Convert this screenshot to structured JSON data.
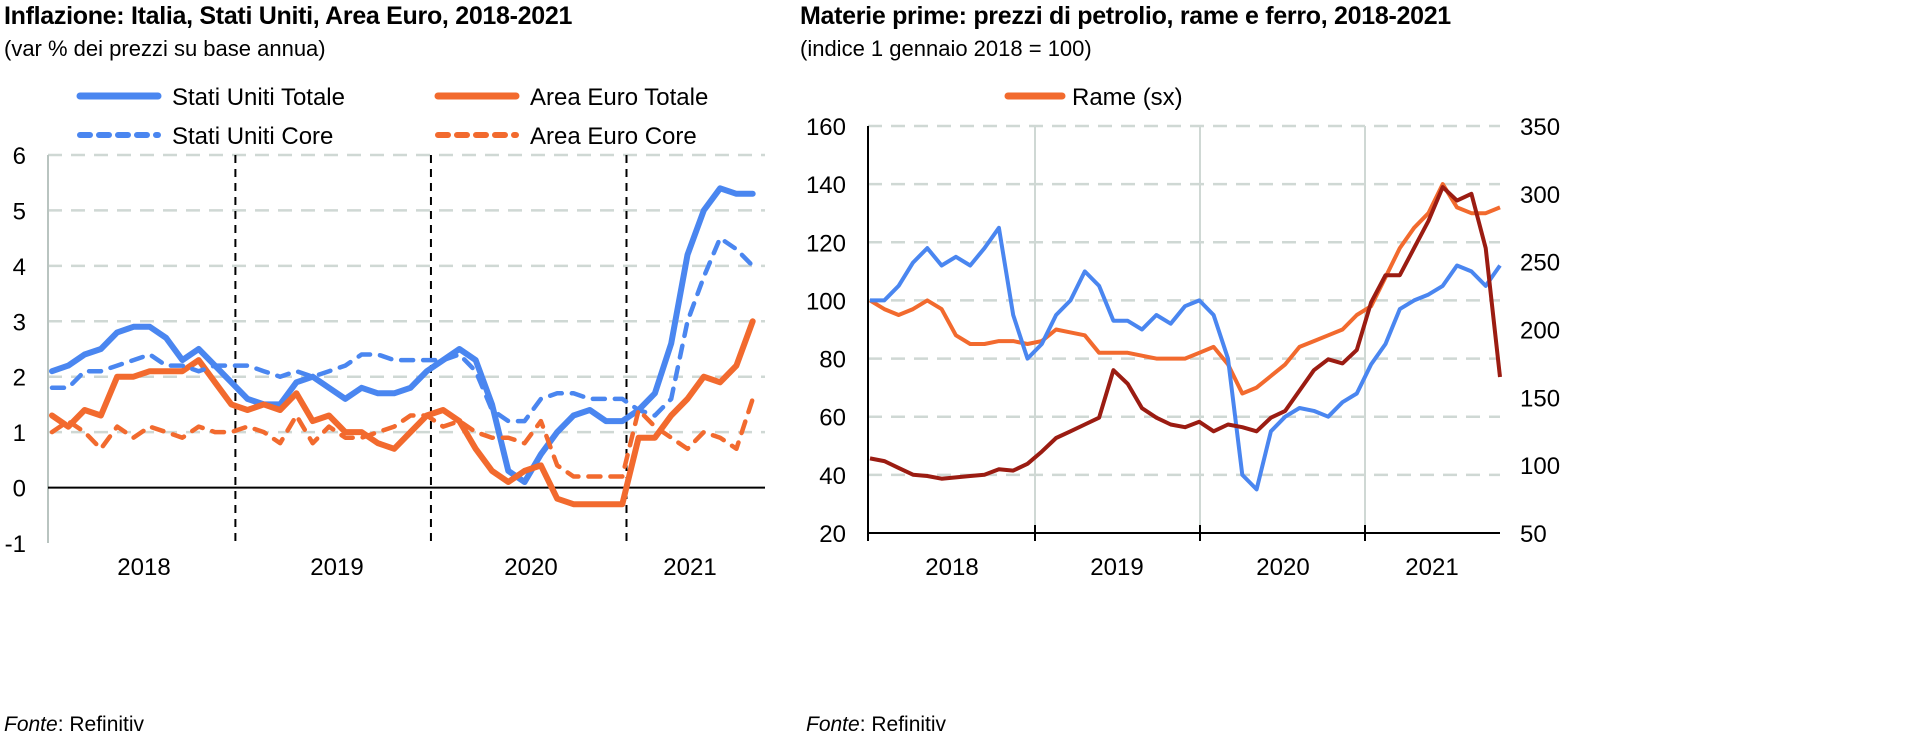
{
  "chart_data": [
    {
      "type": "line",
      "title": "Inflazione: Italia, Stati Uniti, Area Euro, 2018-2021",
      "subtitle": "(var % dei prezzi su base annua)",
      "source_label": "Fonte",
      "source": ": Refinitiv",
      "ylim": [
        -1,
        6
      ],
      "yticks": [
        6,
        5,
        4,
        3,
        2,
        1,
        0,
        -1
      ],
      "xlabels": [
        "2018",
        "2019",
        "2020",
        "2021"
      ],
      "frequency": "monthly, Jan 2018 - Aug 2021",
      "legend_position": "top",
      "series": [
        {
          "name": "Stati Uniti Totale",
          "color": "#4A86F0",
          "dash": false,
          "values": [
            2.1,
            2.2,
            2.4,
            2.5,
            2.8,
            2.9,
            2.9,
            2.7,
            2.3,
            2.5,
            2.2,
            1.9,
            1.6,
            1.5,
            1.5,
            1.9,
            2.0,
            1.8,
            1.6,
            1.8,
            1.7,
            1.7,
            1.8,
            2.1,
            2.3,
            2.5,
            2.3,
            1.5,
            0.3,
            0.1,
            0.6,
            1.0,
            1.3,
            1.4,
            1.2,
            1.2,
            1.4,
            1.7,
            2.6,
            4.2,
            5.0,
            5.4,
            5.3,
            5.3
          ]
        },
        {
          "name": "Area Euro Totale",
          "color": "#F26A2E",
          "dash": false,
          "values": [
            1.3,
            1.1,
            1.4,
            1.3,
            2.0,
            2.0,
            2.1,
            2.1,
            2.1,
            2.3,
            1.9,
            1.5,
            1.4,
            1.5,
            1.4,
            1.7,
            1.2,
            1.3,
            1.0,
            1.0,
            0.8,
            0.7,
            1.0,
            1.3,
            1.4,
            1.2,
            0.7,
            0.3,
            0.1,
            0.3,
            0.4,
            -0.2,
            -0.3,
            -0.3,
            -0.3,
            -0.3,
            0.9,
            0.9,
            1.3,
            1.6,
            2.0,
            1.9,
            2.2,
            3.0
          ]
        },
        {
          "name": "Stati Uniti Core",
          "color": "#4A86F0",
          "dash": true,
          "values": [
            1.8,
            1.8,
            2.1,
            2.1,
            2.2,
            2.3,
            2.4,
            2.2,
            2.2,
            2.1,
            2.2,
            2.2,
            2.2,
            2.1,
            2.0,
            2.1,
            2.0,
            2.1,
            2.2,
            2.4,
            2.4,
            2.3,
            2.3,
            2.3,
            2.3,
            2.4,
            2.1,
            1.4,
            1.2,
            1.2,
            1.6,
            1.7,
            1.7,
            1.6,
            1.6,
            1.6,
            1.4,
            1.3,
            1.6,
            3.0,
            3.8,
            4.5,
            4.3,
            4.0
          ]
        },
        {
          "name": "Area Euro Core",
          "color": "#F26A2E",
          "dash": true,
          "values": [
            1.0,
            1.2,
            1.0,
            0.7,
            1.1,
            0.9,
            1.1,
            1.0,
            0.9,
            1.1,
            1.0,
            1.0,
            1.1,
            1.0,
            0.8,
            1.3,
            0.8,
            1.1,
            0.9,
            0.9,
            1.0,
            1.1,
            1.3,
            1.3,
            1.1,
            1.2,
            1.0,
            0.9,
            0.9,
            0.8,
            1.2,
            0.4,
            0.2,
            0.2,
            0.2,
            0.2,
            1.4,
            1.1,
            0.9,
            0.7,
            1.0,
            0.9,
            0.7,
            1.6
          ]
        }
      ]
    },
    {
      "type": "line",
      "title": "Materie prime: prezzi di petrolio, rame e ferro, 2018-2021",
      "subtitle": "(indice 1 gennaio 2018 = 100)",
      "source_label": "Fonte",
      "source": ": Refinitiv",
      "ylim": [
        20,
        160
      ],
      "yticks": [
        160,
        140,
        120,
        100,
        80,
        60,
        40,
        20
      ],
      "y2lim": [
        50,
        350
      ],
      "y2ticks": [
        350,
        300,
        250,
        200,
        150,
        100,
        50
      ],
      "xlabels": [
        "2018",
        "2019",
        "2020",
        "2021"
      ],
      "frequency": "monthly approx., Jan 2018 - Sep 2021",
      "legend_position": "top",
      "series": [
        {
          "name": "Rame (sx)",
          "color": "#F26A2E",
          "axis": "left",
          "values": [
            100,
            97,
            95,
            97,
            100,
            97,
            88,
            85,
            85,
            86,
            86,
            85,
            86,
            90,
            89,
            88,
            82,
            82,
            82,
            81,
            80,
            80,
            80,
            82,
            84,
            78,
            68,
            70,
            74,
            78,
            84,
            86,
            88,
            90,
            95,
            98,
            108,
            118,
            125,
            130,
            140,
            132,
            130,
            130,
            132
          ]
        },
        {
          "name": "",
          "color": "#4A86F0",
          "axis": "left",
          "values": [
            100,
            100,
            105,
            113,
            118,
            112,
            115,
            112,
            118,
            125,
            95,
            80,
            85,
            95,
            100,
            110,
            105,
            93,
            93,
            90,
            95,
            92,
            98,
            100,
            95,
            80,
            40,
            35,
            55,
            60,
            63,
            62,
            60,
            65,
            68,
            78,
            85,
            97,
            100,
            102,
            105,
            112,
            110,
            105,
            112
          ]
        },
        {
          "name": "",
          "color": "#9B1C12",
          "axis": "right",
          "values": [
            105,
            103,
            98,
            93,
            92,
            90,
            91,
            92,
            93,
            97,
            96,
            101,
            110,
            120,
            125,
            130,
            135,
            170,
            160,
            142,
            135,
            130,
            128,
            132,
            125,
            130,
            128,
            125,
            135,
            140,
            155,
            170,
            178,
            175,
            185,
            220,
            240,
            240,
            260,
            280,
            305,
            295,
            300,
            260,
            165
          ]
        }
      ]
    }
  ]
}
